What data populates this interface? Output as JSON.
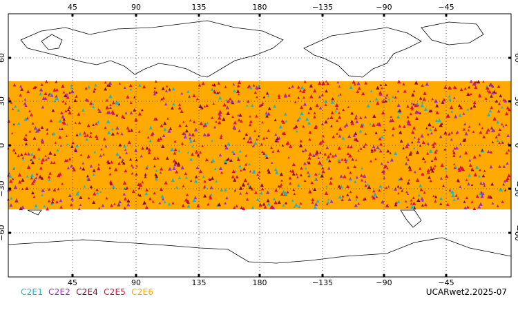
{
  "map": {
    "lon_ticks": [
      "45",
      "90",
      "135",
      "180",
      "−135",
      "−90",
      "−45"
    ],
    "lat_ticks": [
      "60",
      "30",
      "0",
      "−30",
      "−60"
    ],
    "coverage": {
      "lat_max": 45,
      "lat_min": -45
    },
    "colors": {
      "C2E1": "#1fb5c7",
      "C2E2": "#9b2fc9",
      "C2E4": "#8b0a2a",
      "C2E5": "#e0103a",
      "C2E6": "#ffaa00"
    }
  },
  "legend": [
    {
      "label": "C2E1",
      "color": "#1fb5c7"
    },
    {
      "label": "C2E2",
      "color": "#9b2fc9"
    },
    {
      "label": "C2E4",
      "color": "#8b0a2a"
    },
    {
      "label": "C2E5",
      "color": "#e0103a"
    },
    {
      "label": "C2E6",
      "color": "#ffaa00"
    }
  ],
  "stamp": "UCARwet2.2025-07"
}
